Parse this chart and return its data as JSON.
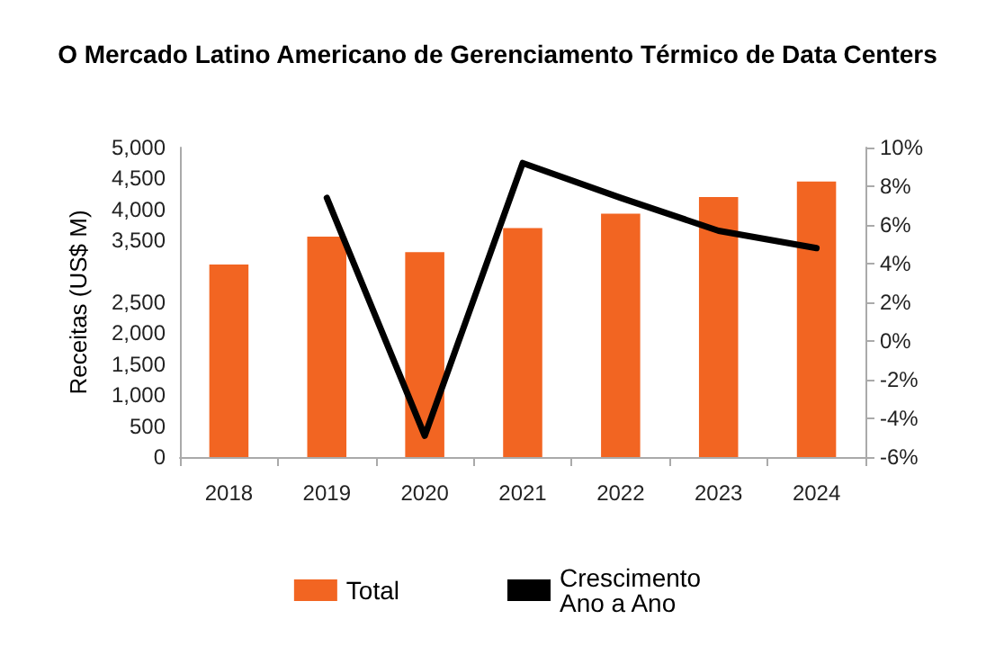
{
  "chart_data": {
    "type": "bar",
    "title": "O Mercado Latino Americano de Gerenciamento Térmico de Data Centers",
    "categories": [
      "2018",
      "2019",
      "2020",
      "2021",
      "2022",
      "2023",
      "2024"
    ],
    "ylabel": "Receitas (US$ M)",
    "series": [
      {
        "name": "Total",
        "color": "#f26522",
        "values": [
          3110,
          3560,
          3310,
          3700,
          3930,
          4200,
          4450
        ]
      },
      {
        "name": "Crescimento\nAno a Ano",
        "type": "line",
        "axis": "y2",
        "color": "#000000",
        "values": [
          null,
          7.4,
          -4.9,
          9.2,
          7.4,
          5.7,
          4.8
        ]
      }
    ],
    "ylim": [
      0,
      5000
    ],
    "yticks": [
      {
        "value": 0,
        "label": "0"
      },
      {
        "value": 500,
        "label": "500"
      },
      {
        "value": 1000,
        "label": "1,000"
      },
      {
        "value": 1500,
        "label": "1,500"
      },
      {
        "value": 2000,
        "label": "2,000"
      },
      {
        "value": 2500,
        "label": "2,500"
      },
      {
        "value": 3500,
        "label": "3,500"
      },
      {
        "value": 4000,
        "label": "4,000"
      },
      {
        "value": 4500,
        "label": "4,500"
      },
      {
        "value": 5000,
        "label": "5,000"
      }
    ],
    "y2lim": [
      -6,
      10
    ],
    "y2ticks": [
      {
        "value": -6,
        "label": "-6%"
      },
      {
        "value": -4,
        "label": "-4%"
      },
      {
        "value": -2,
        "label": "-2%"
      },
      {
        "value": 0,
        "label": "0%"
      },
      {
        "value": 2,
        "label": "2%"
      },
      {
        "value": 4,
        "label": "4%"
      },
      {
        "value": 6,
        "label": "6%"
      },
      {
        "value": 8,
        "label": "8%"
      },
      {
        "value": 10,
        "label": "10%"
      }
    ],
    "grid": false,
    "legend": "bottom",
    "marker": "none",
    "line_style": "solid"
  }
}
